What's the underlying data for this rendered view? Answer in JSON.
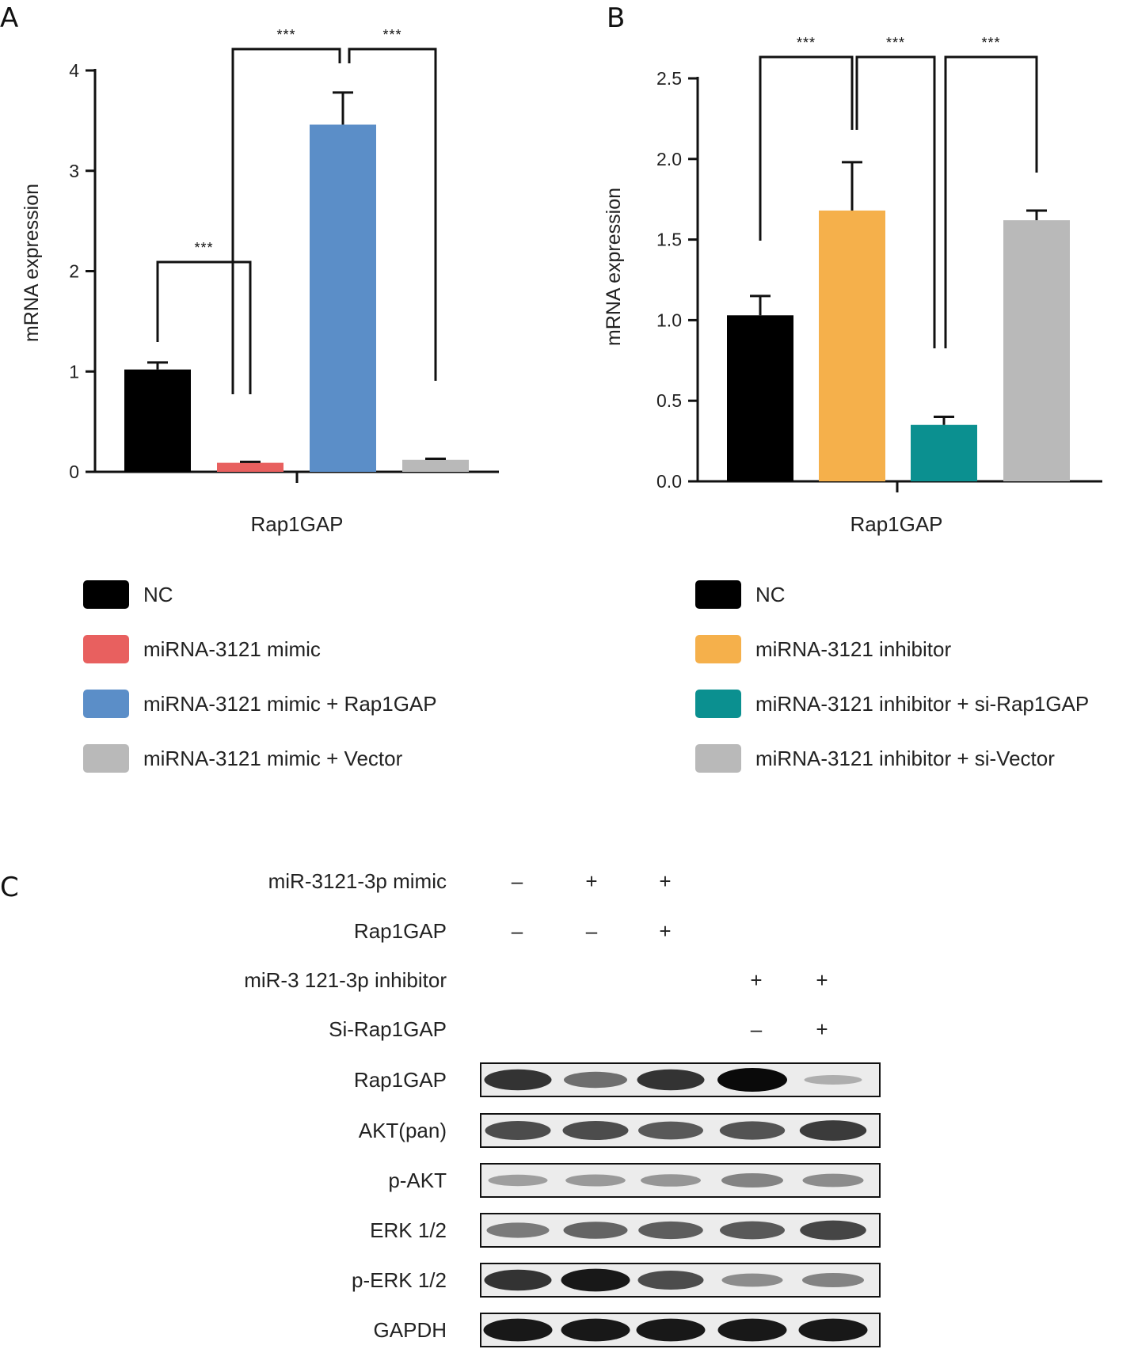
{
  "panels": {
    "a": "A",
    "b": "B",
    "c": "C"
  },
  "chart_data": [
    {
      "type": "bar",
      "panel": "A",
      "categories": [
        "Rap1GAP"
      ],
      "series": [
        {
          "name": "NC",
          "values": [
            1.02
          ],
          "error": [
            0.07
          ],
          "color": "#000000"
        },
        {
          "name": "miRNA-3121 mimic",
          "values": [
            0.09
          ],
          "error": [
            0.01
          ],
          "color": "#e8605f"
        },
        {
          "name": "miRNA-3121 mimic + Rap1GAP",
          "values": [
            3.46
          ],
          "error": [
            0.32
          ],
          "color": "#5b8ec8"
        },
        {
          "name": "miRNA-3121 mimic + Vector",
          "values": [
            0.12
          ],
          "error": [
            0.01
          ],
          "color": "#b9b9b9"
        }
      ],
      "xlabel": "Rap1GAP",
      "ylabel": "mRNA expression",
      "ylim": [
        0,
        4
      ],
      "yticks": [
        "0",
        "1",
        "2",
        "3",
        "4"
      ],
      "significance": [
        {
          "from": 0,
          "to": 1,
          "label": "***"
        },
        {
          "from": 1,
          "to": 2,
          "label": "***"
        },
        {
          "from": 2,
          "to": 3,
          "label": "***"
        }
      ],
      "grid": false,
      "legend_position": "bottom"
    },
    {
      "type": "bar",
      "panel": "B",
      "categories": [
        "Rap1GAP"
      ],
      "series": [
        {
          "name": "NC",
          "values": [
            1.03
          ],
          "error": [
            0.12
          ],
          "color": "#000000"
        },
        {
          "name": "miRNA-3121 inhibitor",
          "values": [
            1.68
          ],
          "error": [
            0.3
          ],
          "color": "#f5b04b"
        },
        {
          "name": "miRNA-3121 inhibitor + si-Rap1GAP",
          "values": [
            0.35
          ],
          "error": [
            0.05
          ],
          "color": "#0b9090"
        },
        {
          "name": "miRNA-3121 inhibitor + si-Vector",
          "values": [
            1.62
          ],
          "error": [
            0.06
          ],
          "color": "#b9b9b9"
        }
      ],
      "xlabel": "Rap1GAP",
      "ylabel": "mRNA expression",
      "ylim": [
        0,
        2.5
      ],
      "yticks": [
        "0.0",
        "0.5",
        "1.0",
        "1.5",
        "2.0",
        "2.5"
      ],
      "significance": [
        {
          "from": 0,
          "to": 1,
          "label": "***"
        },
        {
          "from": 1,
          "to": 2,
          "label": "***"
        },
        {
          "from": 2,
          "to": 3,
          "label": "***"
        }
      ],
      "grid": false,
      "legend_position": "bottom"
    }
  ],
  "western_blot": {
    "conditions": [
      {
        "label": "miR-3121-3p mimic",
        "signs": [
          "–",
          "+",
          "+",
          "",
          ""
        ]
      },
      {
        "label": "Rap1GAP",
        "signs": [
          "–",
          "–",
          "+",
          "",
          ""
        ]
      },
      {
        "label": "miR-3 121-3p inhibitor",
        "signs": [
          "",
          "",
          "",
          "+",
          "+"
        ]
      },
      {
        "label": "Si-Rap1GAP",
        "signs": [
          "",
          "",
          "",
          "–",
          "+"
        ]
      }
    ],
    "rows": [
      {
        "label": "Rap1GAP",
        "intensity": [
          0.85,
          0.6,
          0.85,
          1.0,
          0.25
        ]
      },
      {
        "label": "AKT(pan)",
        "intensity": [
          0.75,
          0.75,
          0.7,
          0.72,
          0.82
        ]
      },
      {
        "label": "p-AKT",
        "intensity": [
          0.35,
          0.38,
          0.4,
          0.5,
          0.45
        ]
      },
      {
        "label": "ERK 1/2",
        "intensity": [
          0.55,
          0.65,
          0.68,
          0.7,
          0.78
        ]
      },
      {
        "label": "p-ERK 1/2",
        "intensity": [
          0.85,
          0.95,
          0.75,
          0.45,
          0.5
        ]
      },
      {
        "label": "GAPDH",
        "intensity": [
          0.95,
          0.95,
          0.95,
          0.95,
          0.95
        ]
      }
    ]
  }
}
